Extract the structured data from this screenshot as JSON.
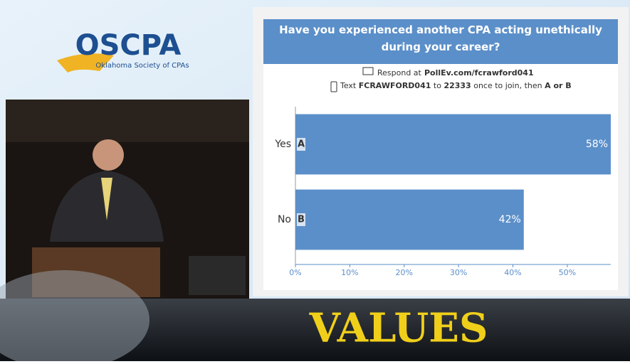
{
  "logo": {
    "name": "OSCPA",
    "subtitle": "Oklahoma Society of CPAs"
  },
  "instructions": {
    "respond_prefix": "Respond at",
    "respond_url": "PollEv.com/fcrawford041",
    "text_prefix": "Text",
    "text_code": "FCRAWFORD041",
    "text_to": "to",
    "text_number": "22333",
    "text_join": "once to join, then",
    "text_options": "A or B"
  },
  "banner": "VALUES",
  "chart_data": {
    "type": "bar",
    "orientation": "horizontal",
    "title": "Have you experienced another CPA acting unethically during your career?",
    "categories": [
      "Yes",
      "No"
    ],
    "option_letters": [
      "A",
      "B"
    ],
    "values": [
      58,
      42
    ],
    "value_labels": [
      "58%",
      "42%"
    ],
    "color": "#5b8fc9",
    "xlim": [
      0,
      58
    ],
    "xticks": [
      {
        "value": 0,
        "label": "0%"
      },
      {
        "value": 10,
        "label": "10%"
      },
      {
        "value": 20,
        "label": "20%"
      },
      {
        "value": 30,
        "label": "30%"
      },
      {
        "value": 40,
        "label": "40%"
      },
      {
        "value": 50,
        "label": "50%"
      }
    ]
  }
}
